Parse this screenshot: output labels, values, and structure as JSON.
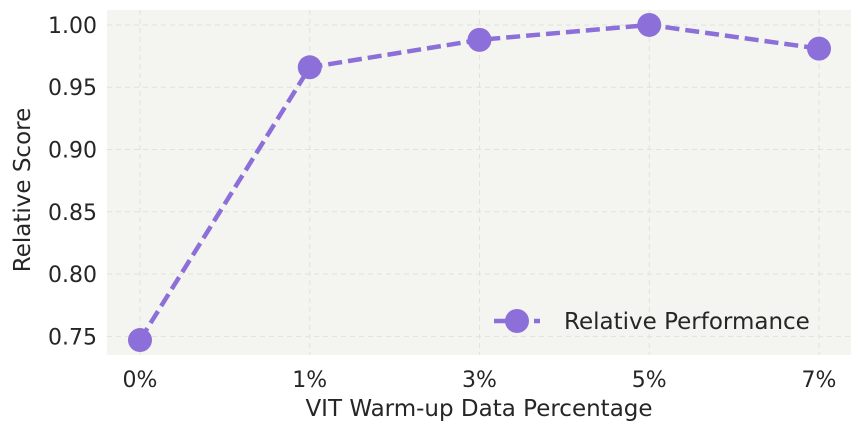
{
  "chart_data": {
    "type": "line",
    "categories": [
      "0%",
      "1%",
      "3%",
      "5%",
      "7%"
    ],
    "series": [
      {
        "name": "Relative Performance",
        "values": [
          0.747,
          0.966,
          0.988,
          1.0,
          0.981
        ],
        "color": "#8c6fd9",
        "line_style": "dashed",
        "marker": "circle"
      }
    ],
    "xlabel": "VIT Warm-up Data Percentage",
    "ylabel": "Relative Score",
    "ylim": [
      0.735,
      1.012
    ],
    "yticks": [
      "0.75",
      "0.80",
      "0.85",
      "0.90",
      "0.95",
      "1.00"
    ],
    "grid": true,
    "legend_position": "bottom-right",
    "plot_background": "#f4f4f0"
  }
}
